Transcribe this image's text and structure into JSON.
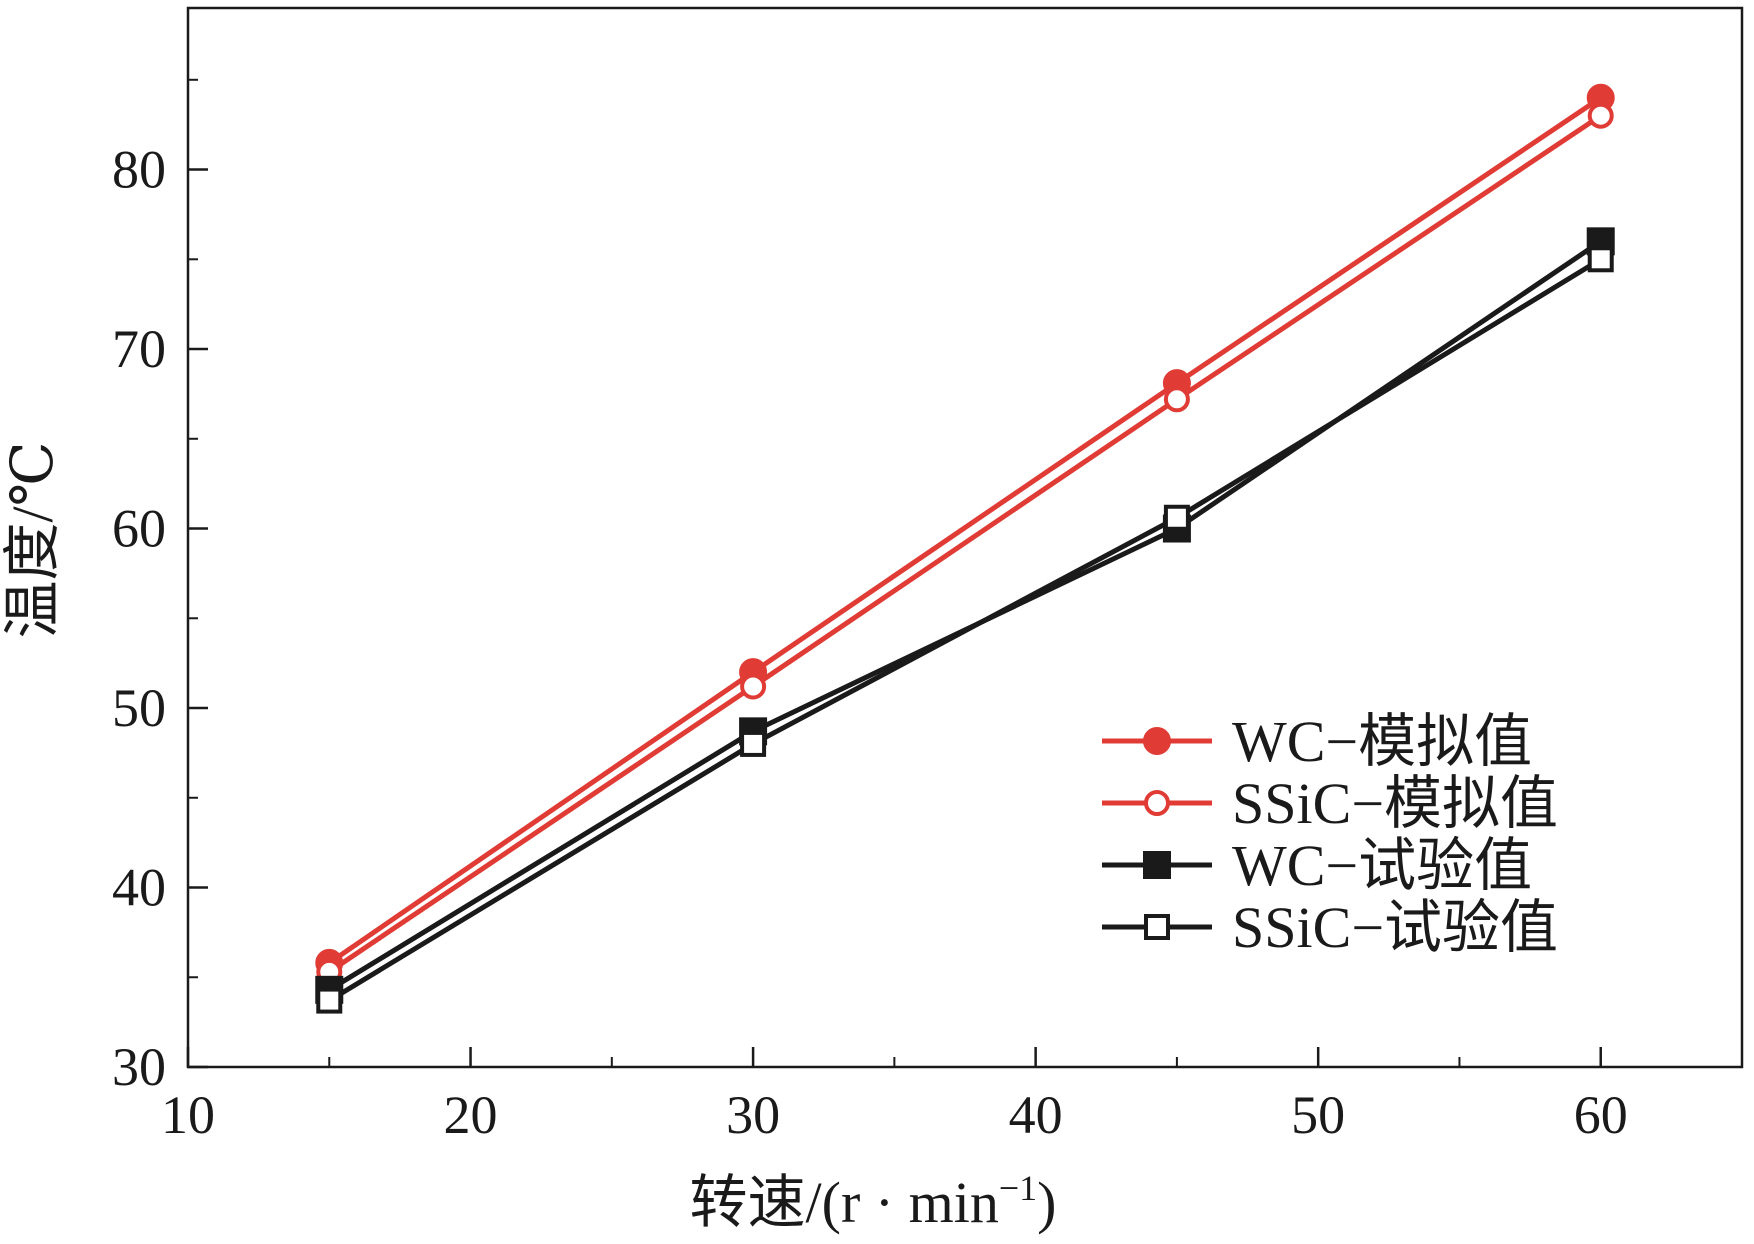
{
  "chart_data": {
    "type": "line",
    "title": "",
    "xlabel": "转速/(r · min",
    "xlabel_sup": "−1",
    "xlabel_end": ")",
    "ylabel": "温度/℃",
    "xlim": [
      10,
      65
    ],
    "ylim": [
      30,
      89
    ],
    "xticks": [
      10,
      20,
      30,
      40,
      50,
      60
    ],
    "yticks": [
      30,
      40,
      50,
      60,
      70,
      80
    ],
    "grid": false,
    "legend_position": "bottom-right",
    "x": [
      15,
      30,
      45,
      60
    ],
    "series": [
      {
        "name": "WC−模拟值",
        "values": [
          35.8,
          52,
          68.1,
          84
        ],
        "color": "#e03c35",
        "marker": "circle",
        "filled": true
      },
      {
        "name": "SSiC−模拟值",
        "values": [
          35.3,
          51.2,
          67.2,
          83
        ],
        "color": "#e03c35",
        "marker": "circle",
        "filled": false
      },
      {
        "name": "WC−试验值",
        "values": [
          34.3,
          48.7,
          60,
          76
        ],
        "color": "#1a1a1a",
        "marker": "square",
        "filled": true
      },
      {
        "name": "SSiC−试验值",
        "values": [
          33.7,
          48,
          60.6,
          75
        ],
        "color": "#1a1a1a",
        "marker": "square",
        "filled": false
      }
    ]
  }
}
